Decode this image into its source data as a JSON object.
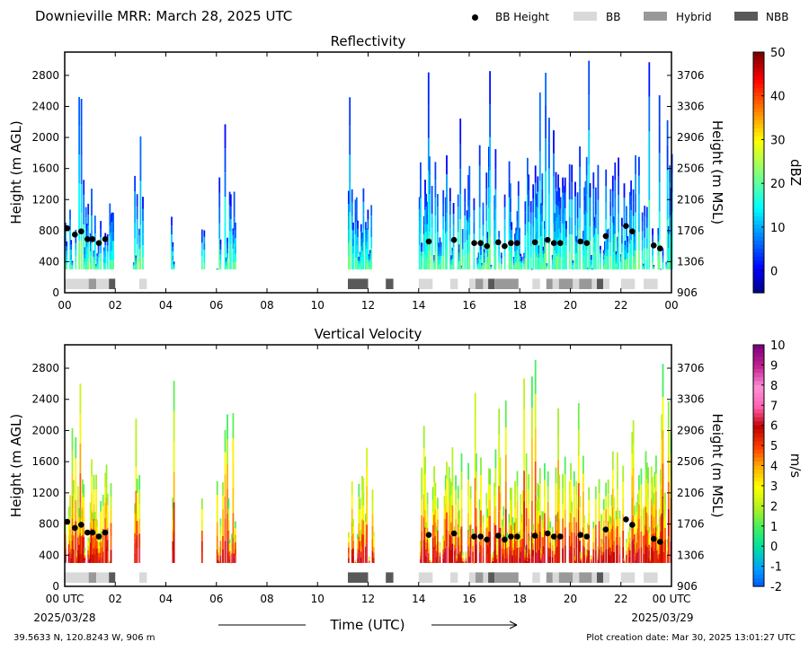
{
  "title": "Downieville MRR:  March 28, 2025 UTC",
  "legend": [
    {
      "label": "BB Height",
      "kind": "dot",
      "color": "#000000"
    },
    {
      "label": "BB",
      "kind": "box",
      "color": "#d9d9d9"
    },
    {
      "label": "Hybrid",
      "kind": "box",
      "color": "#999999"
    },
    {
      "label": "NBB",
      "kind": "box",
      "color": "#595959"
    }
  ],
  "xaxis": {
    "label": "Time (UTC)",
    "ticks": [
      "00 UTC",
      "02",
      "04",
      "06",
      "08",
      "10",
      "12",
      "14",
      "16",
      "18",
      "20",
      "22",
      "00 UTC"
    ],
    "start_date": "2025/03/28",
    "end_date": "2025/03/29"
  },
  "footer": {
    "location": "39.5633 N, 120.8243 W, 906 m",
    "created": "Plot creation date: Mar 30, 2025 13:01:27 UTC"
  },
  "chart_data": [
    {
      "type": "heatmap",
      "title": "Reflectivity",
      "ylabel": "Height (m AGL)",
      "y2label": "Height (m MSL)",
      "ylim": [
        0,
        3100
      ],
      "yticks": [
        0,
        400,
        800,
        1200,
        1600,
        2000,
        2400,
        2800
      ],
      "y2ticks": [
        "906",
        "1306",
        "1706",
        "2106",
        "2506",
        "2906",
        "3306",
        "3706"
      ],
      "x_ticks_shown": [
        "00",
        "02",
        "04",
        "06",
        "08",
        "10",
        "12",
        "14",
        "16",
        "18",
        "20",
        "22",
        "00"
      ],
      "colorbar": {
        "label": "dBZ",
        "min": -5,
        "max": 50,
        "ticks": [
          0,
          10,
          20,
          30,
          40,
          50
        ]
      },
      "echo_periods_utc": [
        [
          0.0,
          1.9
        ],
        [
          2.7,
          3.1
        ],
        [
          4.2,
          4.3
        ],
        [
          5.4,
          5.5
        ],
        [
          6.0,
          6.8
        ],
        [
          11.2,
          12.2
        ],
        [
          14.0,
          24.0
        ]
      ]
    },
    {
      "type": "heatmap",
      "title": "Vertical Velocity",
      "ylabel": "Height (m AGL)",
      "y2label": "Height (m MSL)",
      "ylim": [
        0,
        3100
      ],
      "yticks": [
        0,
        400,
        800,
        1200,
        1600,
        2000,
        2400,
        2800
      ],
      "y2ticks": [
        "906",
        "1306",
        "1706",
        "2106",
        "2506",
        "2906",
        "3306",
        "3706"
      ],
      "colorbar": {
        "label": "m/s",
        "min": -2,
        "max": 10,
        "ticks": [
          -2,
          -1,
          0,
          1,
          2,
          3,
          4,
          5,
          6,
          7,
          8,
          9,
          10
        ]
      },
      "echo_periods_utc": [
        [
          0.0,
          1.9
        ],
        [
          2.7,
          3.1
        ],
        [
          4.2,
          4.3
        ],
        [
          5.4,
          5.5
        ],
        [
          6.0,
          6.8
        ],
        [
          11.2,
          12.2
        ],
        [
          14.0,
          24.0
        ]
      ]
    }
  ],
  "bright_band_heights": {
    "series_name": "BB Height",
    "x_utc": [
      0.1,
      0.4,
      0.65,
      0.9,
      1.1,
      1.35,
      1.6,
      14.4,
      15.4,
      16.2,
      16.45,
      16.7,
      17.15,
      17.4,
      17.65,
      17.9,
      18.6,
      19.1,
      19.35,
      19.6,
      20.4,
      20.65,
      21.4,
      22.2,
      22.45,
      23.3,
      23.55
    ],
    "y_m_agl": [
      830,
      750,
      790,
      690,
      690,
      640,
      690,
      660,
      680,
      640,
      640,
      600,
      650,
      600,
      640,
      640,
      650,
      680,
      640,
      640,
      660,
      640,
      730,
      860,
      790,
      610,
      570
    ]
  },
  "bb_type_bar": [
    {
      "type": "BB",
      "start": 0.0,
      "end": 0.95
    },
    {
      "type": "Hybrid",
      "start": 0.95,
      "end": 1.25
    },
    {
      "type": "BB",
      "start": 1.25,
      "end": 1.75
    },
    {
      "type": "NBB",
      "start": 1.75,
      "end": 2.0
    },
    {
      "type": "BB",
      "start": 2.95,
      "end": 3.25
    },
    {
      "type": "NBB",
      "start": 11.2,
      "end": 12.0
    },
    {
      "type": "NBB",
      "start": 12.7,
      "end": 13.0
    },
    {
      "type": "BB",
      "start": 14.0,
      "end": 14.55
    },
    {
      "type": "BB",
      "start": 15.25,
      "end": 15.55
    },
    {
      "type": "BB",
      "start": 16.0,
      "end": 16.25
    },
    {
      "type": "Hybrid",
      "start": 16.25,
      "end": 16.55
    },
    {
      "type": "BB",
      "start": 16.55,
      "end": 16.75
    },
    {
      "type": "NBB",
      "start": 16.75,
      "end": 17.0
    },
    {
      "type": "Hybrid",
      "start": 17.0,
      "end": 17.95
    },
    {
      "type": "BB",
      "start": 18.5,
      "end": 18.8
    },
    {
      "type": "Hybrid",
      "start": 19.05,
      "end": 19.3
    },
    {
      "type": "BB",
      "start": 19.3,
      "end": 19.55
    },
    {
      "type": "Hybrid",
      "start": 19.55,
      "end": 20.1
    },
    {
      "type": "BB",
      "start": 20.1,
      "end": 20.35
    },
    {
      "type": "Hybrid",
      "start": 20.35,
      "end": 20.85
    },
    {
      "type": "BB",
      "start": 20.85,
      "end": 21.05
    },
    {
      "type": "NBB",
      "start": 21.05,
      "end": 21.3
    },
    {
      "type": "BB",
      "start": 21.3,
      "end": 21.55
    },
    {
      "type": "BB",
      "start": 22.0,
      "end": 22.55
    },
    {
      "type": "BB",
      "start": 22.9,
      "end": 23.45
    }
  ]
}
